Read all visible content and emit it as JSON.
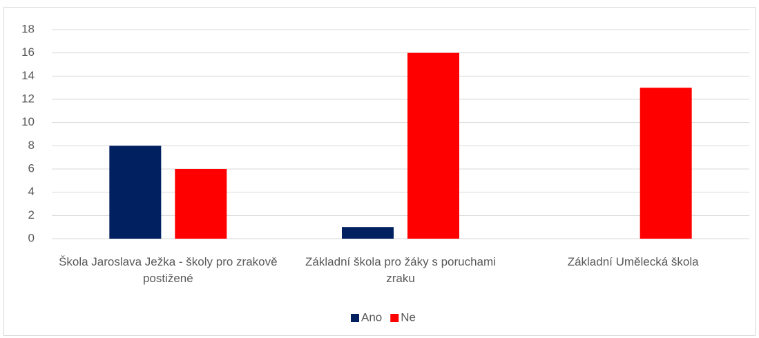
{
  "chart_data": {
    "type": "bar",
    "categories": [
      "Škola Jaroslava Ježka - školy pro zrakově postižené",
      "Základní škola pro žáky s poruchami zraku",
      "Základní Umělecká škola"
    ],
    "series": [
      {
        "name": "Ano",
        "color": "#002060",
        "values": [
          8,
          1,
          0
        ]
      },
      {
        "name": "Ne",
        "color": "#ff0000",
        "values": [
          6,
          16,
          13
        ]
      }
    ],
    "ylim": [
      0,
      18
    ],
    "yticks": [
      0,
      2,
      4,
      6,
      8,
      10,
      12,
      14,
      16,
      18
    ],
    "grid": true,
    "legend": "bottom"
  }
}
